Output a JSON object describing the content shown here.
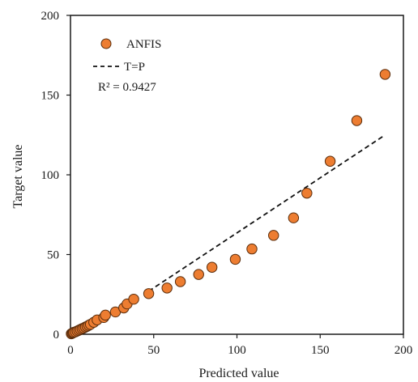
{
  "chart_data": {
    "type": "scatter",
    "xlabel": "Predicted value",
    "ylabel": "Target value",
    "xlim": [
      0,
      200
    ],
    "ylim": [
      0,
      200
    ],
    "x_ticks": [
      "0",
      "50",
      "100",
      "150",
      "200"
    ],
    "y_ticks": [
      "0",
      "50",
      "100",
      "150",
      "200"
    ],
    "grid": false,
    "legend_position": "top-left",
    "series": [
      {
        "name": "ANFIS",
        "marker": "circle",
        "color": "#ED7D31",
        "edge_color": "#5a2d0c",
        "points": [
          [
            0.5,
            0.3
          ],
          [
            1,
            0.6
          ],
          [
            1.5,
            0.9
          ],
          [
            2,
            1.2
          ],
          [
            3,
            1.5
          ],
          [
            4,
            2
          ],
          [
            5,
            2.5
          ],
          [
            6,
            3
          ],
          [
            7,
            3.5
          ],
          [
            8,
            3.9
          ],
          [
            9,
            4.5
          ],
          [
            10,
            5
          ],
          [
            11,
            5.6
          ],
          [
            12,
            6.2
          ],
          [
            14,
            7.5
          ],
          [
            16,
            9
          ],
          [
            20,
            10.5
          ],
          [
            21,
            12
          ],
          [
            27,
            14
          ],
          [
            32,
            16.5
          ],
          [
            34,
            19
          ],
          [
            38,
            22
          ],
          [
            47,
            25.5
          ],
          [
            58,
            29
          ],
          [
            66,
            33
          ],
          [
            77,
            37.5
          ],
          [
            85,
            42
          ],
          [
            99,
            47
          ],
          [
            109,
            53.5
          ],
          [
            122,
            62
          ],
          [
            134,
            73
          ],
          [
            142,
            88.5
          ],
          [
            156,
            108.5
          ],
          [
            172,
            134
          ],
          [
            189,
            163
          ]
        ]
      },
      {
        "name": "T=P",
        "line_style": "dashed",
        "color": "#111111",
        "x": [
          47,
          189
        ],
        "y": [
          27,
          125
        ]
      }
    ],
    "annotations": [
      "R² = 0.9427"
    ]
  }
}
